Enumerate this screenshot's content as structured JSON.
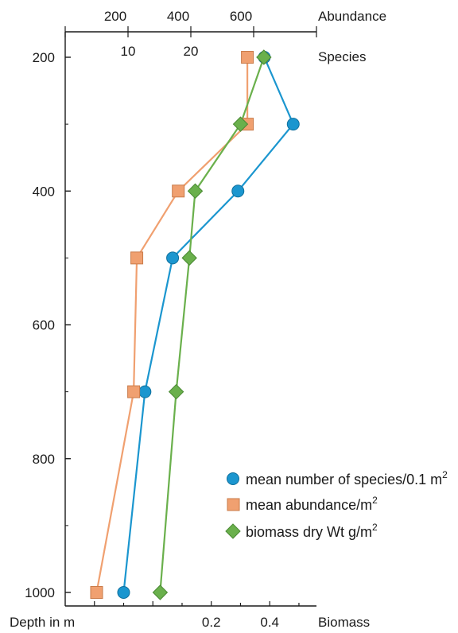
{
  "chart_data": {
    "type": "line",
    "orientation": "depth-profile",
    "depth_axis": {
      "label": "Depth in m",
      "ticks": [
        200,
        400,
        600,
        800,
        1000
      ],
      "range": [
        150,
        1010
      ],
      "inverted": true
    },
    "top_axes": [
      {
        "label": "Abundance",
        "ticks": [
          200,
          400,
          600
        ],
        "range": [
          0,
          800
        ]
      },
      {
        "label": "Species",
        "ticks": [
          10,
          20
        ],
        "range": [
          0,
          40
        ]
      }
    ],
    "bottom_axis": {
      "label": "Biomass",
      "ticks": [
        0.2,
        0.4
      ],
      "range": [
        -0.3,
        0.56
      ]
    },
    "series": [
      {
        "name": "mean number of species/0.1 m",
        "superscript": "2",
        "marker": "circle",
        "color": "#1b96cf",
        "line_color": "#1b96cf",
        "points": [
          {
            "depth": 200,
            "value": 31.7
          },
          {
            "depth": 300,
            "value": 36.3
          },
          {
            "depth": 400,
            "value": 27.5
          },
          {
            "depth": 500,
            "value": 17.1
          },
          {
            "depth": 700,
            "value": 12.7
          },
          {
            "depth": 1000,
            "value": 9.3
          }
        ]
      },
      {
        "name": "mean abundance/m",
        "superscript": "2",
        "marker": "square",
        "color": "#f0a070",
        "line_color": "#f0a070",
        "points": [
          {
            "depth": 200,
            "value": 580
          },
          {
            "depth": 300,
            "value": 580
          },
          {
            "depth": 400,
            "value": 360
          },
          {
            "depth": 500,
            "value": 228
          },
          {
            "depth": 700,
            "value": 218
          },
          {
            "depth": 1000,
            "value": 100
          }
        ]
      },
      {
        "name": "biomass dry Wt g/m",
        "superscript": "2",
        "marker": "diamond",
        "color": "#6ab04c",
        "line_color": "#6ab04c",
        "points": [
          {
            "depth": 200,
            "value": 0.38
          },
          {
            "depth": 300,
            "value": 0.3
          },
          {
            "depth": 400,
            "value": 0.145
          },
          {
            "depth": 500,
            "value": 0.125
          },
          {
            "depth": 700,
            "value": 0.08
          },
          {
            "depth": 1000,
            "value": 0.025
          }
        ]
      }
    ],
    "legend_position": "bottom-right",
    "grid": false
  }
}
